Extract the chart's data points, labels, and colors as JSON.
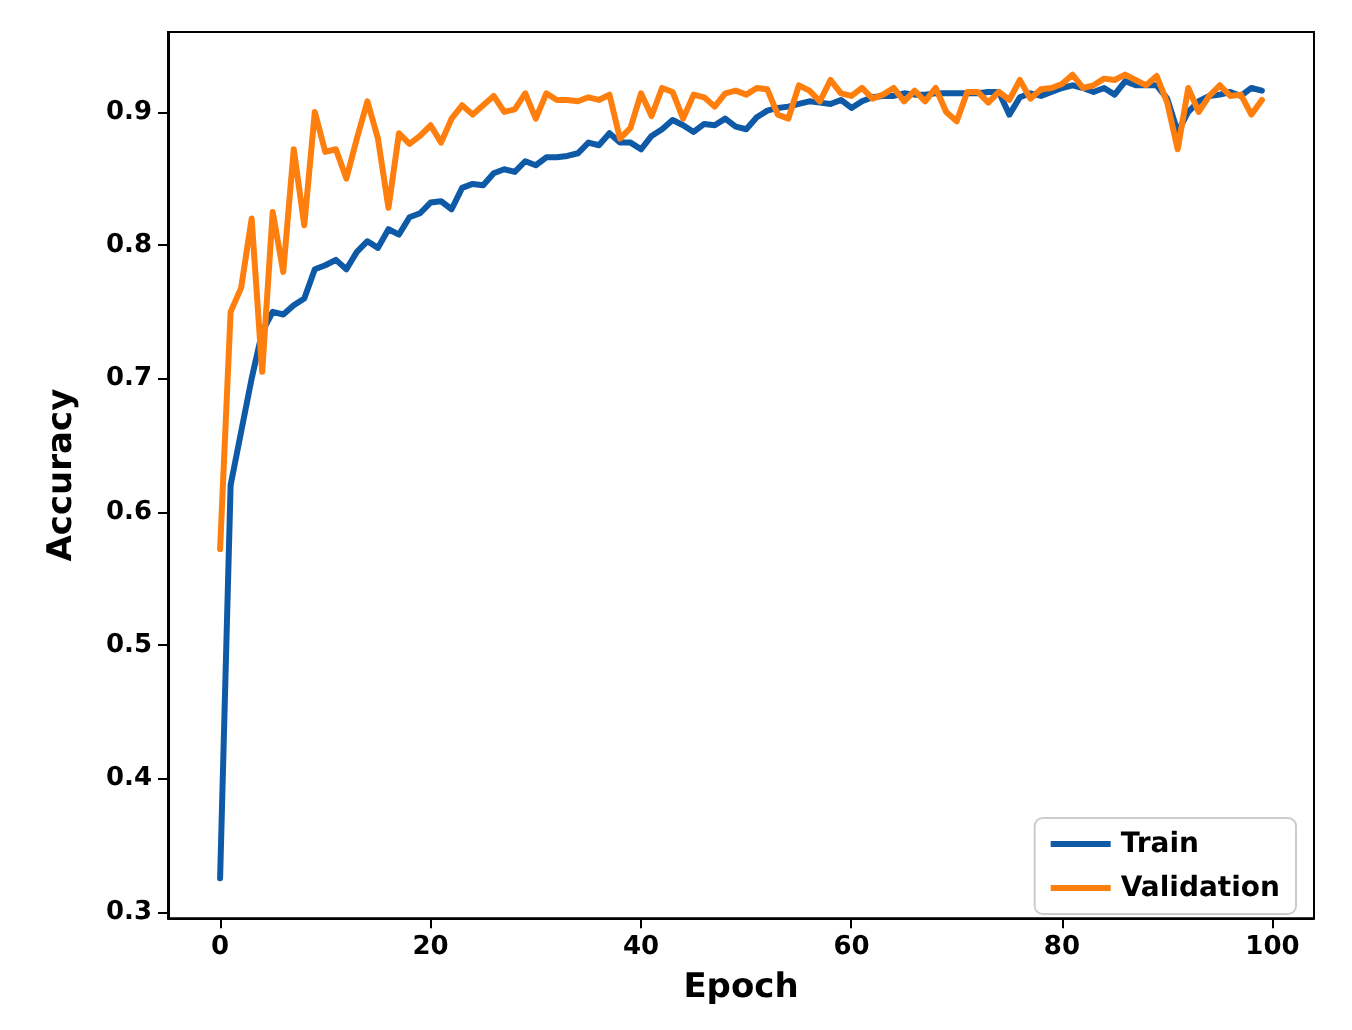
{
  "chart_data": {
    "type": "line",
    "xlabel": "Epoch",
    "ylabel": "Accuracy",
    "x": [
      0,
      1,
      2,
      3,
      4,
      5,
      6,
      7,
      8,
      9,
      10,
      11,
      12,
      13,
      14,
      15,
      16,
      17,
      18,
      19,
      20,
      21,
      22,
      23,
      24,
      25,
      26,
      27,
      28,
      29,
      30,
      31,
      32,
      33,
      34,
      35,
      36,
      37,
      38,
      39,
      40,
      41,
      42,
      43,
      44,
      45,
      46,
      47,
      48,
      49,
      50,
      51,
      52,
      53,
      54,
      55,
      56,
      57,
      58,
      59,
      60,
      61,
      62,
      63,
      64,
      65,
      66,
      67,
      68,
      69,
      70,
      71,
      72,
      73,
      74,
      75,
      76,
      77,
      78,
      79,
      80,
      81,
      82,
      83,
      84,
      85,
      86,
      87,
      88,
      89,
      90,
      91,
      92,
      93,
      94,
      95,
      96,
      97,
      98,
      99
    ],
    "series": [
      {
        "name": "Train",
        "color": "#0e5aa7",
        "values": [
          0.325,
          0.62,
          0.66,
          0.7,
          0.735,
          0.75,
          0.748,
          0.755,
          0.76,
          0.782,
          0.785,
          0.789,
          0.782,
          0.795,
          0.803,
          0.798,
          0.812,
          0.808,
          0.821,
          0.824,
          0.832,
          0.833,
          0.827,
          0.843,
          0.846,
          0.845,
          0.854,
          0.857,
          0.855,
          0.863,
          0.86,
          0.866,
          0.866,
          0.867,
          0.869,
          0.877,
          0.875,
          0.884,
          0.877,
          0.877,
          0.872,
          0.882,
          0.887,
          0.894,
          0.89,
          0.885,
          0.891,
          0.89,
          0.895,
          0.889,
          0.887,
          0.896,
          0.901,
          0.903,
          0.904,
          0.906,
          0.908,
          0.907,
          0.906,
          0.909,
          0.903,
          0.908,
          0.911,
          0.912,
          0.912,
          0.914,
          0.913,
          0.913,
          0.914,
          0.914,
          0.914,
          0.914,
          0.914,
          0.915,
          0.915,
          0.898,
          0.911,
          0.914,
          0.912,
          0.915,
          0.918,
          0.92,
          0.918,
          0.915,
          0.918,
          0.913,
          0.923,
          0.92,
          0.92,
          0.92,
          0.91,
          0.885,
          0.9,
          0.908,
          0.912,
          0.913,
          0.915,
          0.912,
          0.918,
          0.916
        ]
      },
      {
        "name": "Validation",
        "color": "#ff7f0e",
        "values": [
          0.572,
          0.75,
          0.768,
          0.82,
          0.705,
          0.825,
          0.78,
          0.872,
          0.815,
          0.9,
          0.87,
          0.872,
          0.85,
          0.88,
          0.908,
          0.88,
          0.828,
          0.884,
          0.876,
          0.882,
          0.89,
          0.877,
          0.895,
          0.905,
          0.898,
          0.905,
          0.912,
          0.9,
          0.902,
          0.914,
          0.895,
          0.914,
          0.909,
          0.909,
          0.908,
          0.911,
          0.909,
          0.913,
          0.88,
          0.888,
          0.914,
          0.897,
          0.918,
          0.915,
          0.895,
          0.913,
          0.911,
          0.904,
          0.914,
          0.916,
          0.913,
          0.918,
          0.917,
          0.898,
          0.895,
          0.92,
          0.916,
          0.908,
          0.924,
          0.914,
          0.912,
          0.918,
          0.91,
          0.913,
          0.918,
          0.908,
          0.916,
          0.908,
          0.918,
          0.9,
          0.893,
          0.915,
          0.915,
          0.907,
          0.915,
          0.909,
          0.924,
          0.91,
          0.917,
          0.918,
          0.921,
          0.928,
          0.918,
          0.92,
          0.925,
          0.924,
          0.928,
          0.924,
          0.92,
          0.927,
          0.907,
          0.872,
          0.918,
          0.9,
          0.912,
          0.92,
          0.912,
          0.913,
          0.898,
          0.909
        ]
      }
    ],
    "xlim": [
      -4.95,
      103.95
    ],
    "xticks": [
      0,
      20,
      40,
      60,
      80,
      100
    ],
    "ylim": [
      0.295,
      0.96
    ],
    "yticks": [
      0.3,
      0.4,
      0.5,
      0.6,
      0.7,
      0.8,
      0.9
    ],
    "grid": false,
    "legend": "bottom right",
    "marker": "none",
    "line_style": "solid"
  }
}
